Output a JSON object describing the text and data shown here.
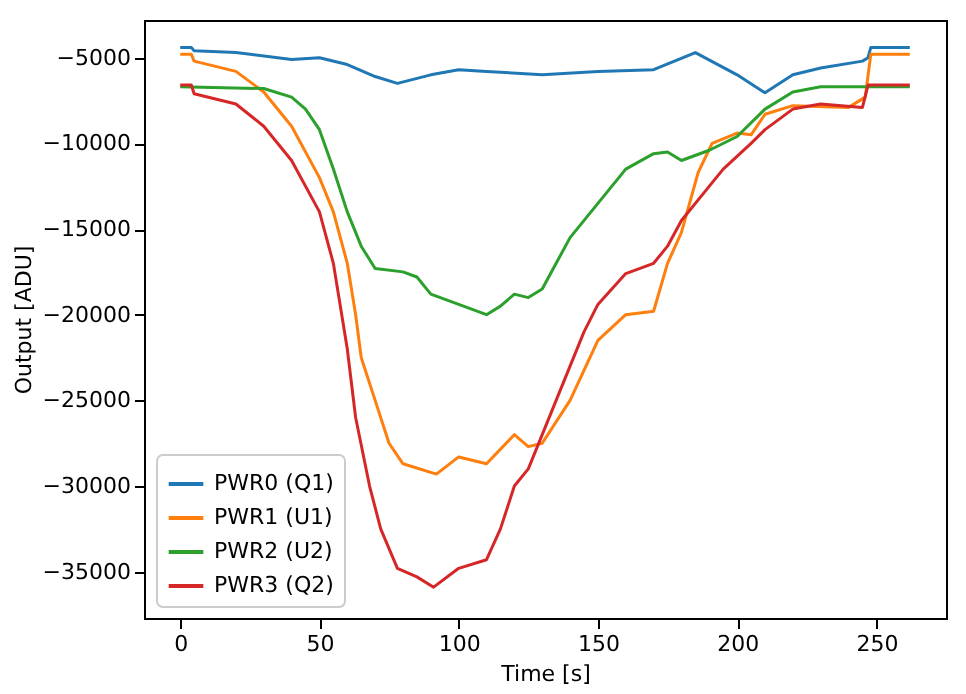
{
  "chart_data": {
    "type": "line",
    "xlabel": "Time [s]",
    "ylabel": "Output [ADU]",
    "xlim": [
      -13,
      275
    ],
    "ylim": [
      -37700,
      -2800
    ],
    "xticks": [
      0,
      50,
      100,
      150,
      200,
      250
    ],
    "yticks": [
      {
        "value": -35000,
        "label": "−35000"
      },
      {
        "value": -30000,
        "label": "−30000"
      },
      {
        "value": -25000,
        "label": "−25000"
      },
      {
        "value": -20000,
        "label": "−20000"
      },
      {
        "value": -15000,
        "label": "−15000"
      },
      {
        "value": -10000,
        "label": "−10000"
      },
      {
        "value": -5000,
        "label": "−5000"
      }
    ],
    "grid": false,
    "legend": "bottom left",
    "marker": "none",
    "line_style": "solid",
    "series": [
      {
        "name": "PWR0 (Q1)",
        "color": "#1f77b4",
        "x": [
          0,
          4,
          5,
          20,
          40,
          50,
          60,
          70,
          78,
          90,
          100,
          110,
          130,
          150,
          170,
          185,
          200,
          210,
          220,
          230,
          245,
          247,
          248,
          262
        ],
        "values": [
          -4400,
          -4400,
          -4600,
          -4700,
          -5100,
          -5000,
          -5400,
          -6100,
          -6500,
          -6000,
          -5700,
          -5800,
          -6000,
          -5800,
          -5700,
          -4700,
          -6000,
          -7050,
          -6000,
          -5600,
          -5200,
          -5000,
          -4400,
          -4400
        ]
      },
      {
        "name": "PWR1 (U1)",
        "color": "#ff7f0e",
        "x": [
          0,
          4,
          5,
          20,
          30,
          40,
          50,
          55,
          60,
          63,
          65,
          70,
          75,
          80,
          92,
          100,
          110,
          120,
          125,
          130,
          140,
          150,
          160,
          170,
          175,
          180,
          186,
          191,
          200,
          205,
          210,
          220,
          240,
          246,
          248,
          262
        ],
        "values": [
          -4800,
          -4800,
          -5200,
          -5800,
          -7000,
          -9000,
          -12000,
          -14000,
          -17000,
          -20000,
          -22500,
          -25000,
          -27500,
          -28700,
          -29300,
          -28300,
          -28700,
          -27000,
          -27700,
          -27500,
          -25000,
          -21500,
          -20000,
          -19800,
          -17000,
          -15200,
          -11700,
          -10000,
          -9400,
          -9500,
          -8300,
          -7800,
          -7900,
          -7300,
          -4800,
          -4800
        ]
      },
      {
        "name": "PWR2 (U2)",
        "color": "#2ca02c",
        "x": [
          0,
          30,
          40,
          45,
          50,
          55,
          60,
          65,
          70,
          80,
          85,
          90,
          100,
          110,
          115,
          120,
          125,
          130,
          135,
          140,
          150,
          160,
          170,
          175,
          180,
          190,
          200,
          210,
          220,
          230,
          262
        ],
        "values": [
          -6700,
          -6800,
          -7300,
          -8000,
          -9200,
          -11500,
          -14000,
          -16000,
          -17300,
          -17500,
          -17800,
          -18800,
          -19400,
          -20000,
          -19500,
          -18800,
          -19000,
          -18500,
          -17000,
          -15500,
          -13500,
          -11500,
          -10600,
          -10500,
          -11000,
          -10400,
          -9600,
          -8000,
          -7000,
          -6700,
          -6700
        ]
      },
      {
        "name": "PWR3 (Q2)",
        "color": "#d62728",
        "x": [
          0,
          4,
          5,
          20,
          30,
          40,
          50,
          55,
          60,
          63,
          68,
          72,
          78,
          85,
          91,
          100,
          110,
          115,
          120,
          125,
          130,
          135,
          140,
          145,
          150,
          160,
          170,
          175,
          180,
          189,
          195,
          205,
          210,
          220,
          230,
          245,
          247,
          262
        ],
        "values": [
          -6600,
          -6600,
          -7100,
          -7700,
          -9000,
          -11000,
          -14000,
          -17000,
          -22000,
          -26000,
          -30000,
          -32500,
          -34800,
          -35300,
          -35900,
          -34800,
          -34300,
          -32500,
          -30000,
          -29000,
          -27000,
          -25000,
          -23000,
          -21000,
          -19400,
          -17600,
          -17000,
          -16000,
          -14500,
          -12700,
          -11500,
          -10000,
          -9200,
          -8000,
          -7700,
          -7900,
          -6600,
          -6600
        ]
      }
    ]
  }
}
